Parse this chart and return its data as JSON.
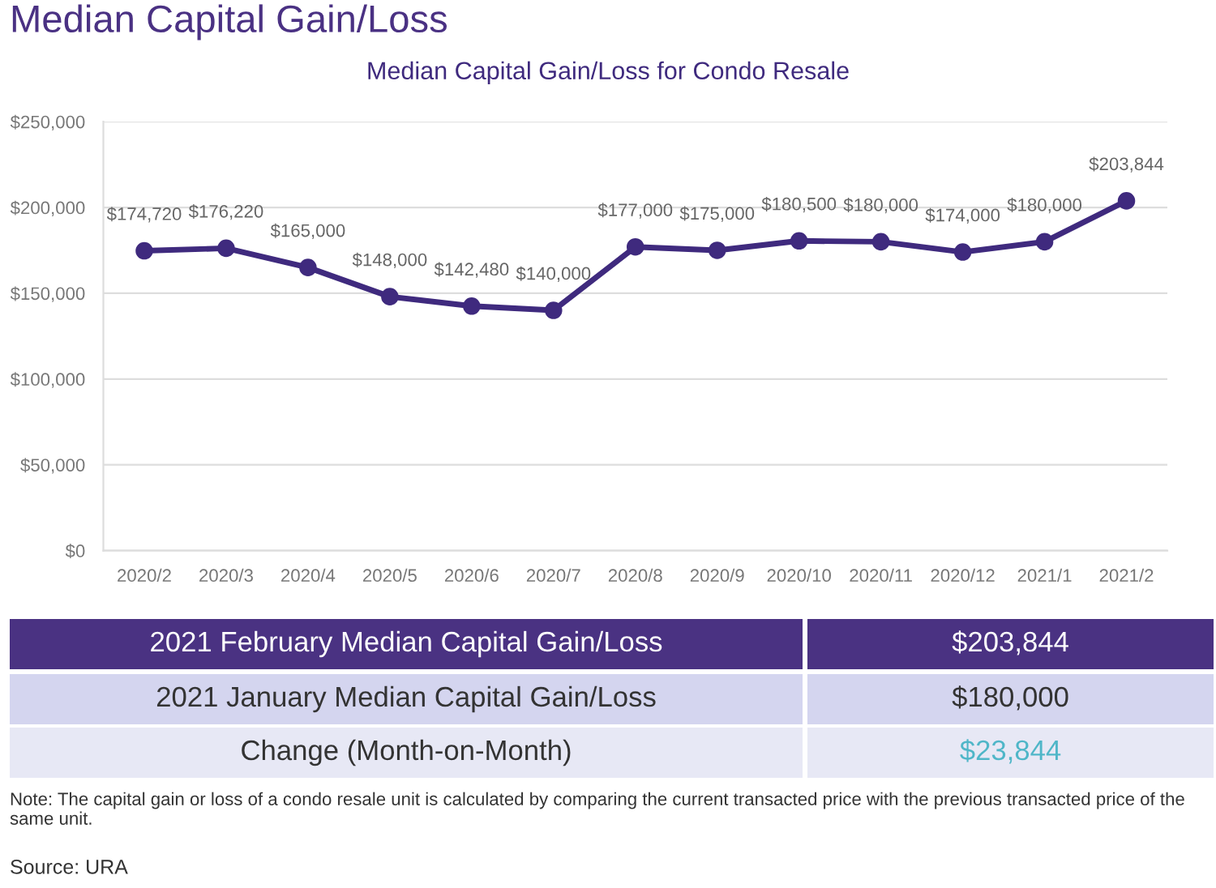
{
  "chart_data": {
    "type": "line",
    "title": "Median Capital Gain/Loss",
    "subtitle": "Median Capital Gain/Loss for Condo Resale",
    "categories": [
      "2020/2",
      "2020/3",
      "2020/4",
      "2020/5",
      "2020/6",
      "2020/7",
      "2020/8",
      "2020/9",
      "2020/10",
      "2020/11",
      "2020/12",
      "2021/1",
      "2021/2"
    ],
    "series": [
      {
        "color": "#3f2a7e",
        "values": [
          174720,
          176220,
          165000,
          148000,
          142480,
          140000,
          177000,
          175000,
          180500,
          180000,
          174000,
          180000,
          203844
        ],
        "value_labels": [
          "$174,720",
          "$176,220",
          "$165,000",
          "$148,000",
          "$142,480",
          "$140,000",
          "$177,000",
          "$175,000",
          "$180,500",
          "$180,000",
          "$174,000",
          "$180,000",
          "$203,844"
        ]
      }
    ],
    "ylim": [
      0,
      250000
    ],
    "yticks": [
      {
        "value": 0,
        "label": "$0"
      },
      {
        "value": 50000,
        "label": "$50,000"
      },
      {
        "value": 100000,
        "label": "$100,000"
      },
      {
        "value": 150000,
        "label": "$150,000"
      },
      {
        "value": 200000,
        "label": "$200,000"
      },
      {
        "value": 250000,
        "label": "$250,000"
      }
    ],
    "grid": "y",
    "marker": "circle",
    "line_style": "solid",
    "legend": false,
    "annotations": [
      "2021 February Median Capital Gain/Loss",
      "$203,844",
      "2021 January Median Capital Gain/Loss",
      "$180,000",
      "Change (Month-on-Month)",
      "$23,844",
      "Note: The capital gain or loss of a condo resale unit is calculated by comparing the current transacted price with the previous transacted price of the same unit.",
      "Source: URA"
    ]
  }
}
